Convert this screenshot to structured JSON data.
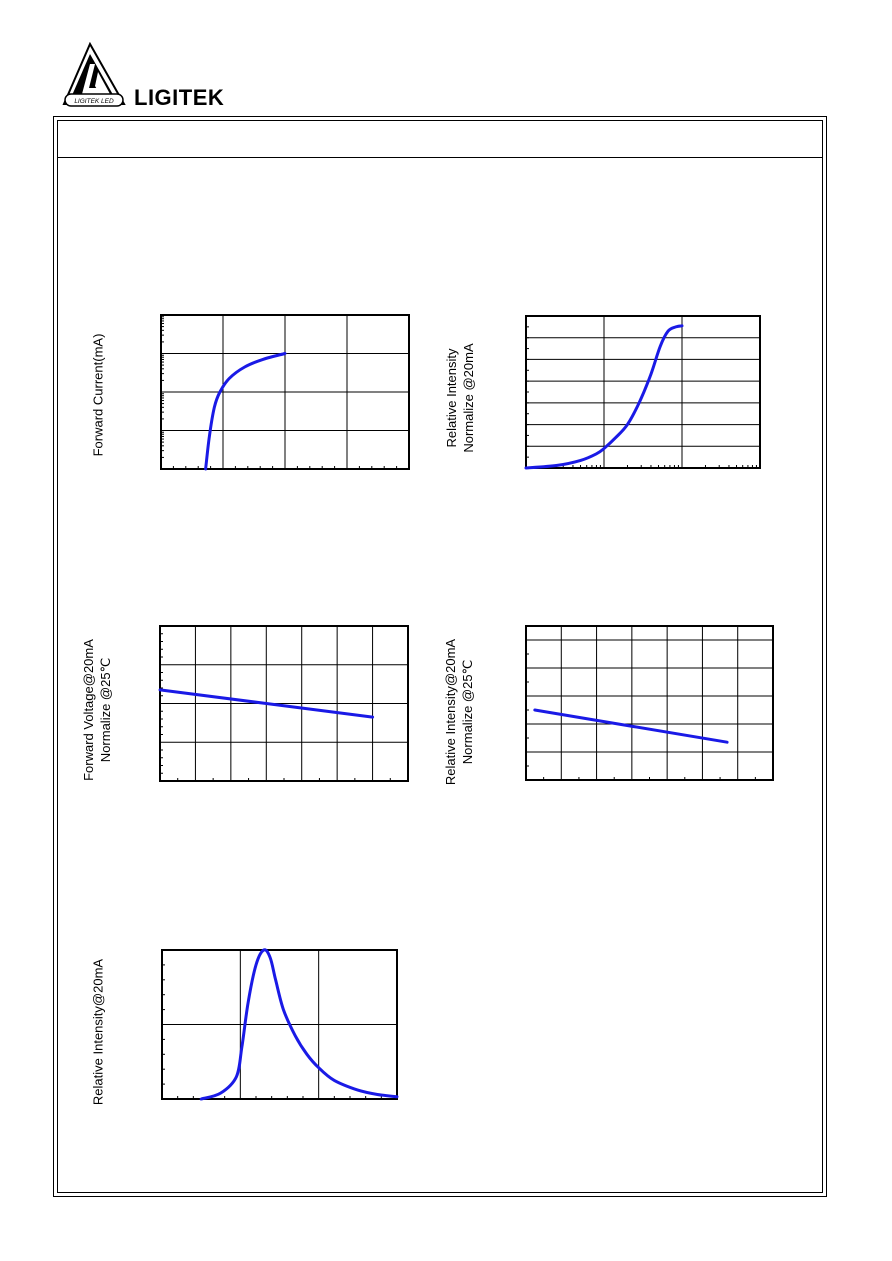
{
  "brand": {
    "name": "LIGITEK",
    "logo_text": "LIGITEK LED"
  },
  "colors": {
    "curve": "#1a1ae6",
    "frame": "#000000",
    "grid": "#000000"
  },
  "charts": {
    "forward_current": {
      "ylabel_lines": [
        "Forward Current(mA)"
      ]
    },
    "relative_intensity_current": {
      "ylabel_lines": [
        "Relative Intensity",
        "Normalize @20mA"
      ]
    },
    "forward_voltage_temp": {
      "ylabel_lines": [
        "Forward Voltage@20mA",
        "Normalize @25℃"
      ]
    },
    "relative_intensity_temp": {
      "ylabel_lines": [
        "Relative Intensity@20mA",
        "Normalize @25℃"
      ]
    },
    "spectrum": {
      "ylabel_lines": [
        "Relative Intensity@20mA"
      ]
    }
  },
  "chart_data": [
    {
      "type": "line",
      "ylabel": "Forward Current(mA)",
      "xlim": [
        0,
        4
      ],
      "ylim": [
        0,
        4
      ],
      "y_scale": "log",
      "grid": true,
      "series": [
        {
          "x": [
            0.72,
            0.78,
            0.86,
            0.95,
            1.1,
            1.35,
            1.65,
            2.0
          ],
          "y": [
            0.0,
            0.85,
            1.6,
            2.0,
            2.35,
            2.65,
            2.85,
            3.0
          ]
        }
      ]
    },
    {
      "type": "line",
      "ylabel": "Relative Intensity Normalize @20mA",
      "xlim": [
        0,
        3
      ],
      "x_scale": "log",
      "ylim": [
        0,
        7
      ],
      "grid": true,
      "series": [
        {
          "x": [
            0.0,
            0.4,
            0.7,
            0.9,
            1.0,
            1.15,
            1.3,
            1.45,
            1.6,
            1.72,
            1.82,
            1.92,
            2.0
          ],
          "y": [
            0.0,
            0.12,
            0.35,
            0.65,
            0.9,
            1.4,
            2.0,
            3.0,
            4.3,
            5.6,
            6.3,
            6.5,
            6.55
          ]
        }
      ]
    },
    {
      "type": "line",
      "ylabel": "Forward Voltage@20mA Normalize @25℃",
      "xlim": [
        0,
        7
      ],
      "ylim": [
        0,
        4
      ],
      "grid": true,
      "series": [
        {
          "x": [
            0,
            6
          ],
          "y": [
            2.35,
            1.65
          ]
        }
      ]
    },
    {
      "type": "line",
      "ylabel": "Relative Intensity@20mA Normalize @25℃",
      "xlim": [
        0,
        7
      ],
      "ylim": [
        0,
        5.5
      ],
      "grid": true,
      "series": [
        {
          "x": [
            0.25,
            5.7
          ],
          "y": [
            2.5,
            1.35
          ]
        }
      ]
    },
    {
      "type": "line",
      "ylabel": "Relative Intensity@20mA",
      "xlim": [
        0,
        3
      ],
      "ylim": [
        0,
        2
      ],
      "grid": true,
      "series": [
        {
          "x": [
            0.5,
            0.75,
            0.95,
            1.02,
            1.1,
            1.2,
            1.3,
            1.38,
            1.45,
            1.55,
            1.7,
            1.85,
            2.0,
            2.2,
            2.5,
            2.75,
            3.0
          ],
          "y": [
            0.0,
            0.08,
            0.3,
            0.7,
            1.3,
            1.8,
            2.0,
            1.9,
            1.6,
            1.2,
            0.85,
            0.6,
            0.42,
            0.25,
            0.12,
            0.06,
            0.03
          ]
        }
      ]
    }
  ]
}
